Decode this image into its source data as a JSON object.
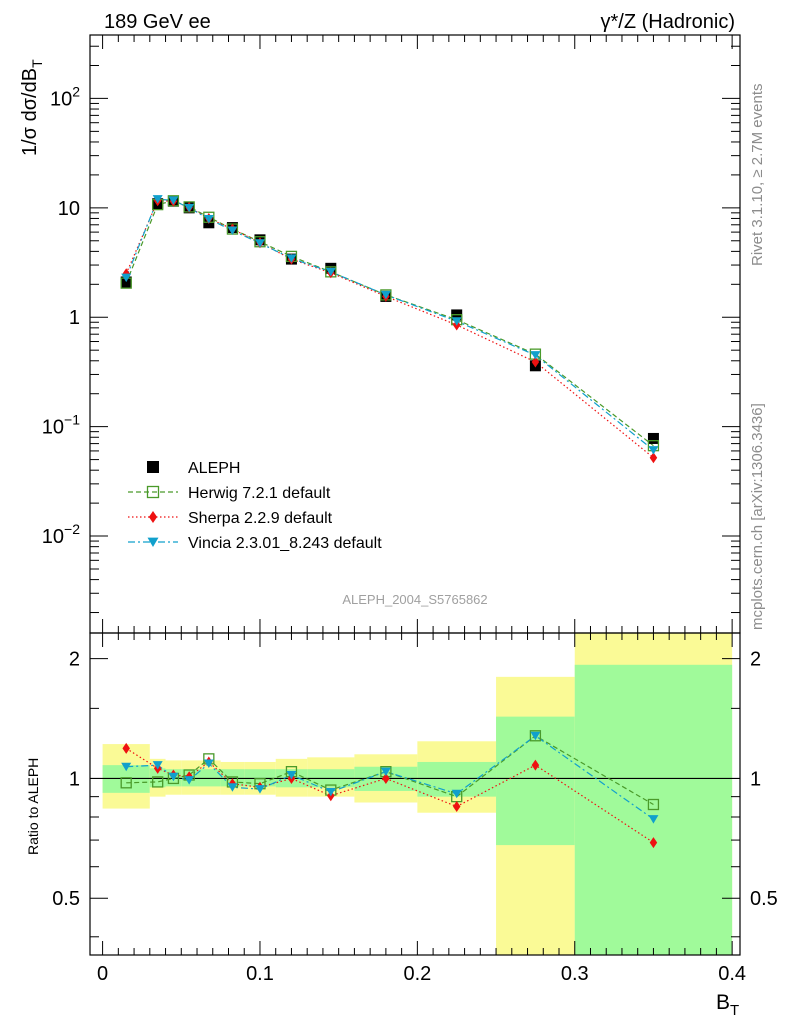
{
  "header": {
    "left": "189 GeV ee",
    "right": "γ*/Z (Hadronic)",
    "side_top": "Rivet 3.1.10, ≥ 2.7M events",
    "side_bottom": "mcplots.cern.ch [arXiv:1306.3436]",
    "analysis_id": "ALEPH_2004_S5765862"
  },
  "chart_data": {
    "type": "scatter",
    "x": [
      0.015,
      0.035,
      0.045,
      0.055,
      0.0675,
      0.0825,
      0.1,
      0.12,
      0.145,
      0.18,
      0.225,
      0.275,
      0.35
    ],
    "xlabel": "B",
    "xlabel_sub": "T",
    "ylabel": "1/σ  dσ/dB",
    "ylabel_sub": "T",
    "xlim": [
      -0.008,
      0.405
    ],
    "ylim": [
      0.0013,
      380
    ],
    "yscale": "log",
    "x_ticks": [
      {
        "v": 0,
        "label": "0"
      },
      {
        "v": 0.1,
        "label": "0.1"
      },
      {
        "v": 0.2,
        "label": "0.2"
      },
      {
        "v": 0.3,
        "label": "0.3"
      },
      {
        "v": 0.4,
        "label": "0.4"
      }
    ],
    "y_ticks": [
      {
        "v": 0.01,
        "base": "10",
        "exp": "−2"
      },
      {
        "v": 0.1,
        "base": "10",
        "exp": "−1"
      },
      {
        "v": 1,
        "base": "1",
        "exp": ""
      },
      {
        "v": 10,
        "base": "10",
        "exp": ""
      },
      {
        "v": 100,
        "base": "10",
        "exp": "2"
      }
    ],
    "series": [
      {
        "name": "ALEPH",
        "color": "#000000",
        "marker": "square-filled",
        "line": "none",
        "values": [
          2.1,
          10.9,
          11.5,
          10.0,
          7.3,
          6.6,
          5.1,
          3.4,
          2.8,
          1.55,
          1.05,
          0.36,
          0.078
        ],
        "ratio": [
          1.0,
          1.0,
          1.0,
          1.0,
          1.0,
          1.0,
          1.0,
          1.0,
          1.0,
          1.0,
          1.0,
          1.0,
          1.0
        ]
      },
      {
        "name": "Herwig 7.2.1 default",
        "color": "#4a9a2a",
        "marker": "square-open",
        "line": "dashed",
        "values": [
          2.05,
          10.7,
          11.6,
          10.2,
          8.2,
          6.4,
          4.9,
          3.6,
          2.6,
          1.6,
          0.95,
          0.46,
          0.067
        ],
        "ratio": [
          0.975,
          0.98,
          1.0,
          1.02,
          1.12,
          0.98,
          0.97,
          1.04,
          0.935,
          1.04,
          0.9,
          1.28,
          0.86
        ]
      },
      {
        "name": "Sherpa 2.2.9 default",
        "color": "#ee1111",
        "marker": "diamond-filled",
        "line": "dotted",
        "values": [
          2.5,
          11.6,
          11.5,
          10.1,
          8.0,
          6.4,
          4.8,
          3.4,
          2.55,
          1.55,
          0.85,
          0.39,
          0.052
        ],
        "ratio": [
          1.19,
          1.06,
          1.02,
          1.01,
          1.1,
          0.97,
          0.95,
          1.0,
          0.905,
          1.0,
          0.85,
          1.08,
          0.69
        ]
      },
      {
        "name": "Vincia 2.3.01_8.243 default",
        "color": "#11a0cc",
        "marker": "triangle-down-filled",
        "line": "dashdot",
        "values": [
          2.3,
          12.0,
          11.7,
          10.0,
          7.9,
          6.2,
          4.75,
          3.45,
          2.6,
          1.6,
          0.92,
          0.45,
          0.061
        ],
        "ratio": [
          1.07,
          1.08,
          1.01,
          0.99,
          1.09,
          0.95,
          0.94,
          1.02,
          0.925,
          1.04,
          0.915,
          1.28,
          0.79
        ]
      }
    ],
    "ratio_panel": {
      "ylabel": "Ratio to ALEPH",
      "ylim": [
        0.36,
        2.32
      ],
      "yscale": "log",
      "y_ticks": [
        {
          "v": 0.5,
          "label": "0.5"
        },
        {
          "v": 1,
          "label": "1"
        },
        {
          "v": 2,
          "label": "2"
        }
      ],
      "bands": [
        {
          "x0": 0.0,
          "x1": 0.03,
          "stat": [
            0.92,
            1.08
          ],
          "total": [
            0.84,
            1.22
          ]
        },
        {
          "x0": 0.03,
          "x1": 0.04,
          "stat": [
            0.95,
            1.06
          ],
          "total": [
            0.9,
            1.12
          ]
        },
        {
          "x0": 0.04,
          "x1": 0.05,
          "stat": [
            0.955,
            1.055
          ],
          "total": [
            0.91,
            1.11
          ]
        },
        {
          "x0": 0.05,
          "x1": 0.06,
          "stat": [
            0.955,
            1.055
          ],
          "total": [
            0.91,
            1.11
          ]
        },
        {
          "x0": 0.06,
          "x1": 0.075,
          "stat": [
            0.955,
            1.055
          ],
          "total": [
            0.91,
            1.11
          ]
        },
        {
          "x0": 0.075,
          "x1": 0.09,
          "stat": [
            0.955,
            1.055
          ],
          "total": [
            0.91,
            1.1
          ]
        },
        {
          "x0": 0.09,
          "x1": 0.11,
          "stat": [
            0.955,
            1.055
          ],
          "total": [
            0.91,
            1.1
          ]
        },
        {
          "x0": 0.11,
          "x1": 0.13,
          "stat": [
            0.95,
            1.055
          ],
          "total": [
            0.9,
            1.12
          ]
        },
        {
          "x0": 0.13,
          "x1": 0.16,
          "stat": [
            0.95,
            1.055
          ],
          "total": [
            0.9,
            1.13
          ]
        },
        {
          "x0": 0.16,
          "x1": 0.2,
          "stat": [
            0.93,
            1.07
          ],
          "total": [
            0.87,
            1.15
          ]
        },
        {
          "x0": 0.2,
          "x1": 0.25,
          "stat": [
            0.9,
            1.1
          ],
          "total": [
            0.82,
            1.24
          ]
        },
        {
          "x0": 0.25,
          "x1": 0.3,
          "stat": [
            0.68,
            1.43
          ],
          "total": [
            0.36,
            1.8
          ]
        },
        {
          "x0": 0.3,
          "x1": 0.4,
          "stat": [
            0.36,
            1.93
          ],
          "total": [
            0.36,
            2.32
          ]
        }
      ],
      "stat_color": "#a0fa9a",
      "total_color": "#fafa96"
    }
  }
}
